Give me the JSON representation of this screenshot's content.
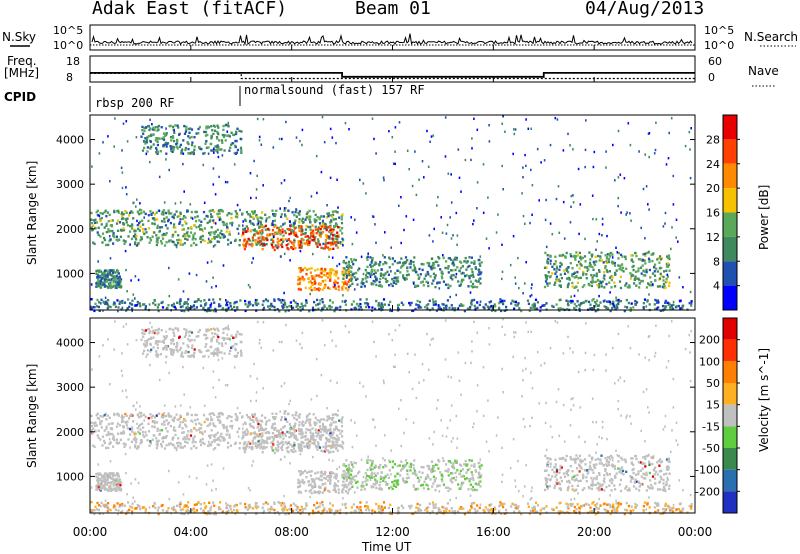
{
  "header": {
    "title_left": "Adak East (fitACF)",
    "title_center": "Beam 01",
    "title_right": "04/Aug/2013"
  },
  "top_panels": {
    "nsky_label": "N.Sky",
    "nsearch_label": "N.Search",
    "noise_ticks": [
      "10^5",
      "10^0"
    ],
    "freq_label_1": "Freq.",
    "freq_label_2": "[MHz]",
    "freq_ticks": [
      "18",
      "8"
    ],
    "nave_ticks": [
      "60",
      "0"
    ],
    "nave_label": "Nave",
    "cpid_label": "CPID",
    "cpid_segments": [
      {
        "label": "rbsp 200 RF",
        "start_hour": 0,
        "end_hour": 6
      },
      {
        "label": "normalsound (fast) 157 RF",
        "start_hour": 6,
        "end_hour": 24
      }
    ]
  },
  "power_panel": {
    "ylabel": "Slant Range [km]",
    "colorbar_label": "Power [dB]",
    "colorbar_ticks": [
      "28",
      "24",
      "20",
      "16",
      "12",
      "8",
      "4"
    ],
    "colorbar_colors": [
      "#0000ff",
      "#2050b0",
      "#3e8a5e",
      "#5aa85a",
      "#f6c200",
      "#ff8a00",
      "#ff4000",
      "#e80000"
    ]
  },
  "velocity_panel": {
    "ylabel": "Slant Range [km]",
    "colorbar_label": "Velocity [m s^-1]",
    "colorbar_ticks": [
      "200",
      "100",
      "50",
      "15",
      "-15",
      "-50",
      "-100",
      "-200"
    ],
    "colorbar_colors": [
      "#2030c0",
      "#2a6fb0",
      "#3a8a50",
      "#60cc40",
      "#c0c0c0",
      "#ffb020",
      "#ff8000",
      "#ff3000",
      "#e00000"
    ]
  },
  "x_axis": {
    "label": "Time UT",
    "ticks": [
      "00:00",
      "04:00",
      "08:00",
      "12:00",
      "16:00",
      "20:00",
      "00:00"
    ]
  },
  "chart_data": {
    "type": "heatmap",
    "title": "Adak East (fitACF) Beam 01 04/Aug/2013",
    "xlabel": "Time UT",
    "ylabel": "Slant Range [km]",
    "xlim_hours": [
      0,
      24
    ],
    "ylim_km": [
      180,
      4550
    ],
    "y_ticks": [
      1000,
      2000,
      3000,
      4000
    ],
    "frequency_mhz": [
      {
        "start_hour": 0,
        "end_hour": 10,
        "value": 11.5
      },
      {
        "start_hour": 10,
        "end_hour": 18,
        "value": 10
      },
      {
        "start_hour": 18,
        "end_hour": 24,
        "value": 11.5
      }
    ],
    "nave": [
      {
        "start_hour": 0,
        "end_hour": 6,
        "value": 20
      },
      {
        "start_hour": 6,
        "end_hour": 24,
        "value": 8
      }
    ],
    "scatter_regions": [
      {
        "t0": 0.0,
        "t1": 10.0,
        "r0": 1650,
        "r1": 2450,
        "power_db": 12
      },
      {
        "t0": 6.0,
        "t1": 9.8,
        "r0": 1550,
        "r1": 2100,
        "power_db": 26
      },
      {
        "t0": 8.2,
        "t1": 10.3,
        "r0": 650,
        "r1": 1150,
        "power_db": 22
      },
      {
        "t0": 0.2,
        "t1": 1.2,
        "r0": 700,
        "r1": 1100,
        "power_db": 10
      },
      {
        "t0": 2.0,
        "t1": 6.0,
        "r0": 3700,
        "r1": 4350,
        "power_db": 10
      },
      {
        "t0": 10.0,
        "t1": 15.5,
        "r0": 700,
        "r1": 1400,
        "power_db": 10
      },
      {
        "t0": 18.0,
        "t1": 23.0,
        "r0": 700,
        "r1": 1500,
        "power_db": 12
      },
      {
        "t0": 0.0,
        "t1": 24.0,
        "r0": 180,
        "r1": 450,
        "power_db": 8
      }
    ]
  }
}
